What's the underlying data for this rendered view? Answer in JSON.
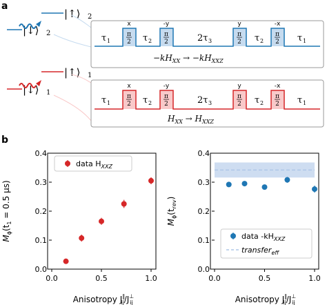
{
  "panel_a": {
    "label": "a",
    "top": {
      "ket_up": "|↑⟩",
      "ket_up_sub": "2",
      "ket_down": "|↓⟩",
      "ket_down_sub": "2",
      "sequence_color": "#1f77b4",
      "fill_color": "#c6dbef",
      "tau1": "τ",
      "tau2": "τ",
      "tau3": "2τ",
      "phases": [
        "x",
        "-y",
        "y",
        "-x"
      ],
      "pulse_num": "π",
      "pulse_den": "2",
      "caption": "−kH",
      "caption_sub1": "XX",
      "caption_arrow": " → −kH",
      "caption_sub2": "XXZ"
    },
    "bottom": {
      "ket_up": "|↑⟩",
      "ket_up_sub": "1",
      "ket_down": "|↓⟩",
      "ket_down_sub": "1",
      "sequence_color": "#d62728",
      "fill_color": "#f9c9c9",
      "tau1": "τ",
      "tau2": "τ",
      "tau3": "2τ",
      "phases": [
        "x",
        "-y",
        "y",
        "-x"
      ],
      "pulse_num": "π",
      "pulse_den": "2",
      "caption": "H",
      "caption_sub1": "XX",
      "caption_arrow": " → H",
      "caption_sub2": "XXZ"
    }
  },
  "panel_b": {
    "label": "b"
  },
  "chart_data": [
    {
      "type": "scatter",
      "xlabel": "Anisotropy J",
      "xlabel_sub": "ij",
      "xlabel_sup": "∥",
      "xlabel_mid": "/J",
      "xlabel_sub2": "ij",
      "xlabel_sup2": "⊥",
      "ylabel": "M",
      "ylabel_sub": "ϕ",
      "ylabel_rest": "(t",
      "ylabel_sub2": "1",
      "ylabel_end": " = 0.5 μs)",
      "xlim": [
        0.0,
        1.0
      ],
      "ylim": [
        0.0,
        0.4
      ],
      "xticks": [
        "0.0",
        "0.5",
        "1.0"
      ],
      "yticks": [
        "0.0",
        "0.1",
        "0.2",
        "0.3",
        "0.4"
      ],
      "legend_position": "top-left",
      "series": [
        {
          "name": "data H",
          "name_sub": "XXZ",
          "color": "#d62728",
          "x": [
            0.143,
            0.3,
            0.5,
            0.727,
            1.0
          ],
          "y": [
            0.027,
            0.107,
            0.165,
            0.225,
            0.305
          ],
          "err": [
            0.008,
            0.012,
            0.012,
            0.014,
            0.012
          ]
        }
      ]
    },
    {
      "type": "scatter",
      "xlabel": "Anisotropy J",
      "xlabel_sub": "ij",
      "xlabel_sup": "∥",
      "xlabel_mid": "/J",
      "xlabel_sub2": "ij",
      "xlabel_sup2": "⊥",
      "ylabel": "M",
      "ylabel_sub": "ϕ",
      "ylabel_rest": "(t",
      "ylabel_sub2": "rev",
      "ylabel_end": ")",
      "xlim": [
        0.0,
        1.0
      ],
      "ylim": [
        0.0,
        0.4
      ],
      "xticks": [
        "0.0",
        "0.5",
        "1.0"
      ],
      "yticks": [
        "0.0",
        "0.1",
        "0.2",
        "0.3",
        "0.4"
      ],
      "legend_position": "bottom-right",
      "band": {
        "center": 0.342,
        "low": 0.316,
        "high": 0.368,
        "color": "#aec7e8"
      },
      "series": [
        {
          "name": "data -kH",
          "name_sub": "XXZ",
          "color": "#1f77b4",
          "x": [
            0.143,
            0.3,
            0.5,
            0.727,
            1.0
          ],
          "y": [
            0.292,
            0.295,
            0.283,
            0.308,
            0.276
          ],
          "err": [
            0.008,
            0.008,
            0.008,
            0.01,
            0.012
          ]
        },
        {
          "name": "transfer",
          "name_sub": "eff",
          "color": "#aec7e8",
          "line": "dashed"
        }
      ]
    }
  ]
}
